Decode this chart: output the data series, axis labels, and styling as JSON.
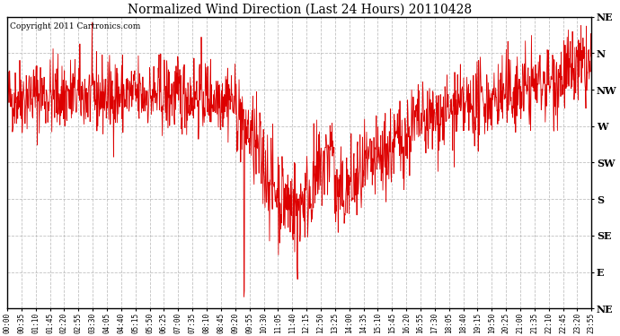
{
  "title": "Normalized Wind Direction (Last 24 Hours) 20110428",
  "copyright_text": "Copyright 2011 Cartronics.com",
  "line_color": "#dd0000",
  "background_color": "#ffffff",
  "plot_bg_color": "#ffffff",
  "grid_color": "#bbbbbb",
  "ytick_labels": [
    "NE",
    "N",
    "NW",
    "W",
    "SW",
    "S",
    "SE",
    "E",
    "NE"
  ],
  "ytick_values": [
    1.0,
    0.875,
    0.75,
    0.625,
    0.5,
    0.375,
    0.25,
    0.125,
    0.0
  ],
  "xtick_labels": [
    "00:00",
    "00:35",
    "01:10",
    "01:45",
    "02:20",
    "02:55",
    "03:30",
    "04:05",
    "04:40",
    "05:15",
    "05:50",
    "06:25",
    "07:00",
    "07:35",
    "08:10",
    "08:45",
    "09:20",
    "09:55",
    "10:30",
    "11:05",
    "11:40",
    "12:15",
    "12:50",
    "13:25",
    "14:00",
    "14:35",
    "15:10",
    "15:45",
    "16:20",
    "16:55",
    "17:30",
    "18:05",
    "18:40",
    "19:15",
    "19:50",
    "20:25",
    "21:00",
    "21:35",
    "22:10",
    "22:45",
    "23:20",
    "23:55"
  ],
  "seed": 42,
  "n_points": 1440,
  "figwidth": 6.9,
  "figheight": 3.75,
  "dpi": 100
}
